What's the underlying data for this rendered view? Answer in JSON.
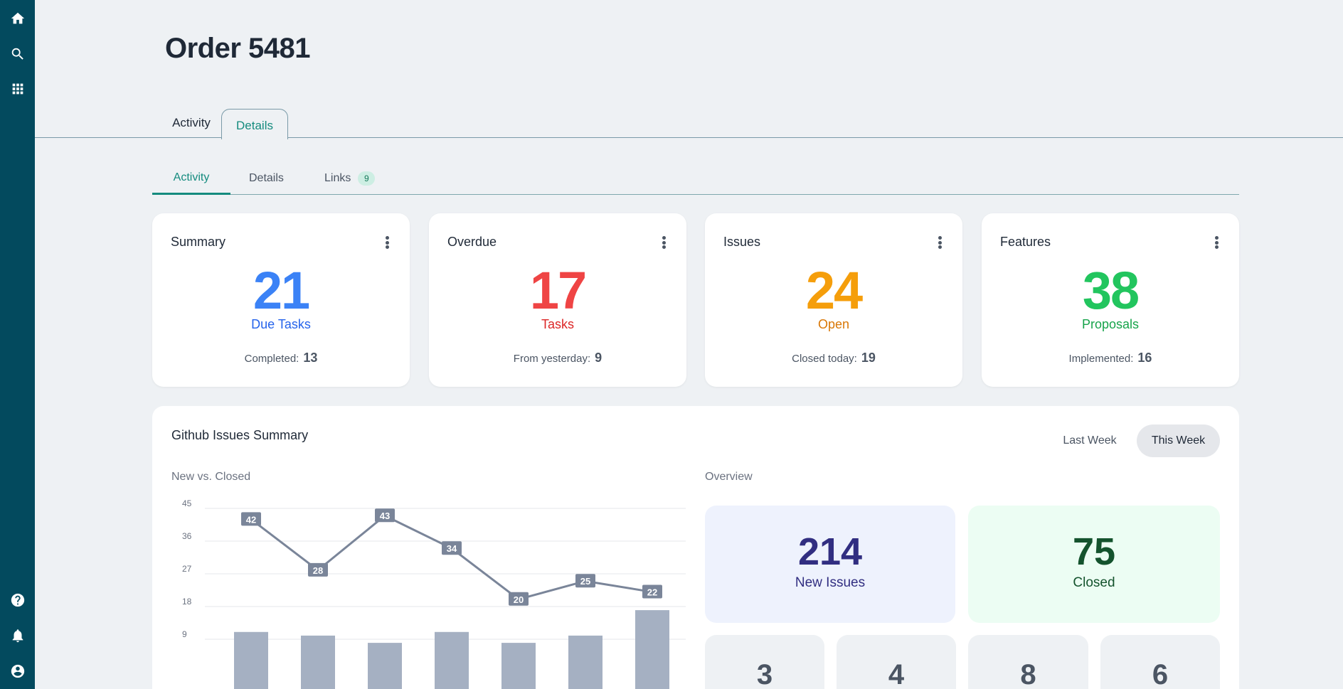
{
  "page": {
    "title": "Order 5481"
  },
  "top_tabs": [
    {
      "label": "Activity"
    },
    {
      "label": "Details"
    }
  ],
  "sub_tabs": [
    {
      "label": "Activity"
    },
    {
      "label": "Details"
    },
    {
      "label": "Links",
      "badge": "9"
    }
  ],
  "sidebar": {
    "top_icons": [
      "home-icon",
      "search-icon",
      "apps-grid-icon"
    ],
    "bottom_icons": [
      "help-icon",
      "notifications-icon",
      "account-icon"
    ]
  },
  "cards": [
    {
      "title": "Summary",
      "value": "21",
      "label": "Due Tasks",
      "foot_label": "Completed:",
      "foot_value": "13",
      "value_color": "#3b82f6",
      "label_color": "#2563eb"
    },
    {
      "title": "Overdue",
      "value": "17",
      "label": "Tasks",
      "foot_label": "From yesterday:",
      "foot_value": "9",
      "value_color": "#ef4444",
      "label_color": "#dc2626"
    },
    {
      "title": "Issues",
      "value": "24",
      "label": "Open",
      "foot_label": "Closed today:",
      "foot_value": "19",
      "value_color": "#f59e0b",
      "label_color": "#d97706"
    },
    {
      "title": "Features",
      "value": "38",
      "label": "Proposals",
      "foot_label": "Implemented:",
      "foot_value": "16",
      "value_color": "#22c55e",
      "label_color": "#16a34a"
    }
  ],
  "github": {
    "title": "Github Issues Summary",
    "range_options": [
      "Last Week",
      "This Week"
    ],
    "selected_range": "This Week",
    "chart_label": "New vs. Closed",
    "overview_label": "Overview",
    "overview": {
      "new_issues": {
        "value": "214",
        "label": "New Issues"
      },
      "closed": {
        "value": "75",
        "label": "Closed"
      },
      "small": [
        "3",
        "4",
        "8",
        "6"
      ]
    }
  },
  "chart_data": {
    "type": "line",
    "series": [
      {
        "values": [
          42,
          28,
          43,
          34,
          20,
          25,
          22
        ]
      },
      {
        "type": "bar",
        "values": [
          11,
          10,
          8,
          11,
          8,
          10,
          17
        ]
      }
    ],
    "yticks": [
      "45",
      "36",
      "27",
      "18",
      "9"
    ],
    "ylim": [
      0,
      45
    ],
    "grid": true,
    "line_color": "#7a8599",
    "bar_color": "#a5b0c2"
  }
}
